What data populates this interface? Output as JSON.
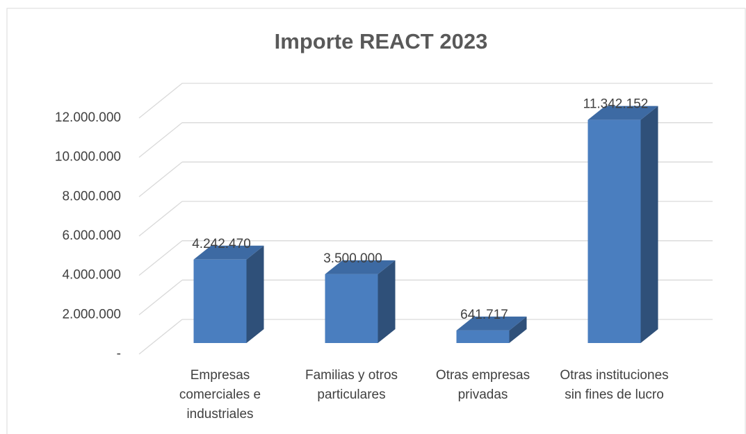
{
  "chart_data": {
    "type": "bar3d",
    "title": "Importe REACT 2023",
    "categories": [
      "Empresas comerciales e industriales",
      "Familias y otros particulares",
      "Otras empresas privadas",
      "Otras instituciones sin fines de lucro"
    ],
    "values": [
      4242470,
      3500000,
      641717,
      11342152
    ],
    "value_labels": [
      "4.242.470",
      "3.500.000",
      "641.717",
      "11.342.152"
    ],
    "color": "#4a7ebf",
    "ylim": [
      0,
      12000000
    ],
    "yticks": [
      {
        "value": 0,
        "label": "-"
      },
      {
        "value": 2000000,
        "label": "2.000.000"
      },
      {
        "value": 4000000,
        "label": "4.000.000"
      },
      {
        "value": 6000000,
        "label": "6.000.000"
      },
      {
        "value": 8000000,
        "label": "8.000.000"
      },
      {
        "value": 10000000,
        "label": "10.000.000"
      },
      {
        "value": 12000000,
        "label": "12.000.000"
      }
    ],
    "grid": true
  }
}
